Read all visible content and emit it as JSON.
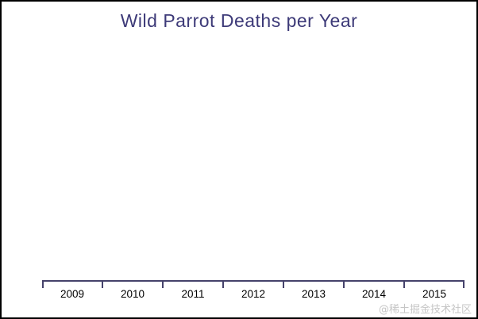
{
  "chart": {
    "title": "Wild Parrot Deaths per Year"
  },
  "chart_data": {
    "type": "bar",
    "title": "Wild Parrot Deaths per Year",
    "categories": [
      "2009",
      "2010",
      "2011",
      "2012",
      "2013",
      "2014",
      "2015"
    ],
    "values": [
      null,
      null,
      null,
      null,
      null,
      null,
      null
    ],
    "xlabel": "",
    "ylabel": "",
    "grid": false,
    "legend": false,
    "plot_area_empty": true,
    "x_tick_count": 8
  },
  "watermark": {
    "text": "@稀土掘金技术社区"
  },
  "colors": {
    "title": "#3d3a78",
    "axis": "#45426b",
    "tick_label": "#000000",
    "watermark": "#c6c6c6",
    "border": "#000000",
    "background": "#ffffff"
  }
}
